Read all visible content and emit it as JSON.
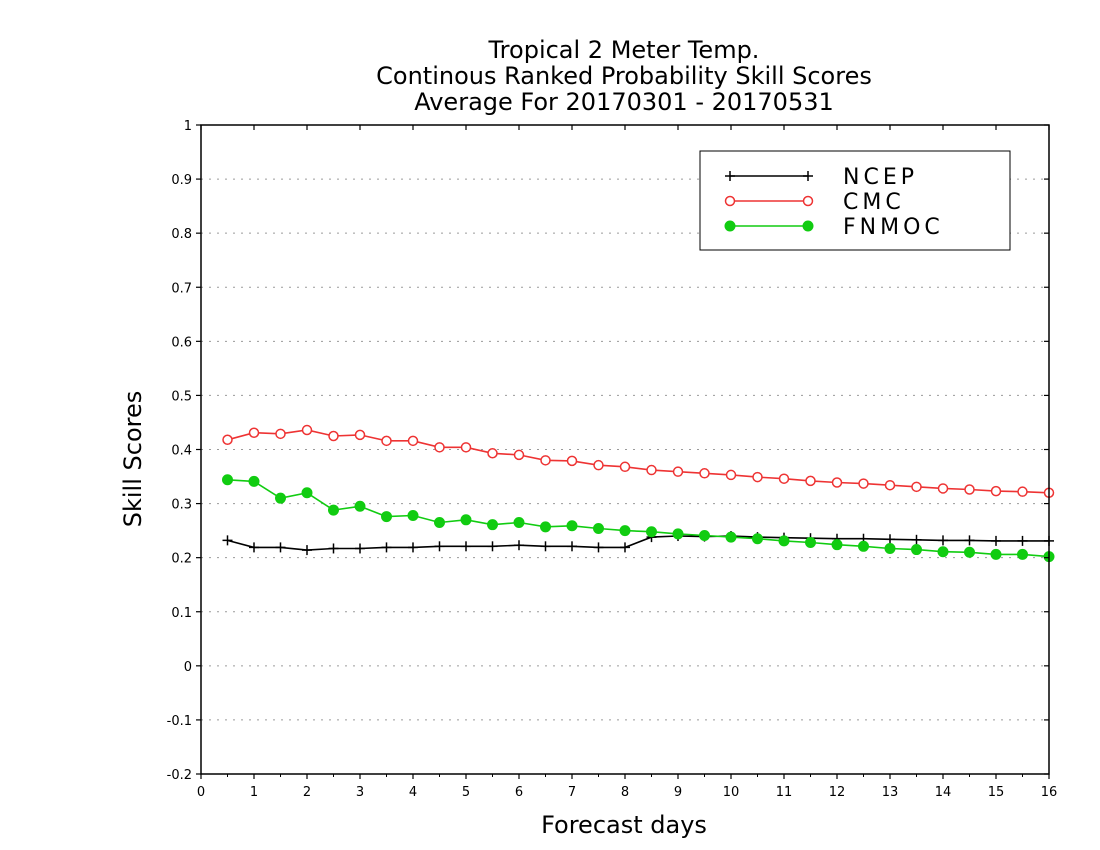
{
  "chart_data": {
    "type": "line",
    "title": [
      "Tropical 2 Meter Temp.",
      "Continous Ranked Probability Skill Scores",
      "Average For 20170301 - 20170531"
    ],
    "xlabel": "Forecast days",
    "ylabel": "Skill Scores",
    "xlim": [
      0,
      16
    ],
    "ylim": [
      -0.2,
      1
    ],
    "xticks": [
      "0",
      "1",
      "2",
      "3",
      "4",
      "5",
      "6",
      "7",
      "8",
      "9",
      "10",
      "11",
      "12",
      "13",
      "14",
      "15",
      "16"
    ],
    "yticks": [
      "-0.2",
      "-0.1",
      "0",
      "0.1",
      "0.2",
      "0.3",
      "0.4",
      "0.5",
      "0.6",
      "0.7",
      "0.8",
      "0.9",
      "1"
    ],
    "grid": "horizontal dotted",
    "legend_position": "top-right",
    "x": [
      0.5,
      1,
      1.5,
      2,
      2.5,
      3,
      3.5,
      4,
      4.5,
      5,
      5.5,
      6,
      6.5,
      7,
      7.5,
      8,
      8.5,
      9,
      9.5,
      10,
      10.5,
      11,
      11.5,
      12,
      12.5,
      13,
      13.5,
      14,
      14.5,
      15,
      15.5,
      16
    ],
    "series": [
      {
        "name": "NCEP",
        "color": "#000000",
        "marker": "plus",
        "values": [
          0.232,
          0.219,
          0.219,
          0.214,
          0.217,
          0.217,
          0.219,
          0.219,
          0.221,
          0.221,
          0.221,
          0.223,
          0.221,
          0.221,
          0.219,
          0.219,
          0.238,
          0.24,
          0.239,
          0.24,
          0.238,
          0.237,
          0.236,
          0.235,
          0.235,
          0.234,
          0.233,
          0.232,
          0.232,
          0.231,
          0.231,
          0.231
        ]
      },
      {
        "name": "CMC",
        "color": "#ee3333",
        "marker": "open-circle",
        "values": [
          0.418,
          0.431,
          0.429,
          0.436,
          0.425,
          0.427,
          0.416,
          0.416,
          0.404,
          0.404,
          0.393,
          0.39,
          0.38,
          0.379,
          0.371,
          0.368,
          0.362,
          0.359,
          0.356,
          0.353,
          0.349,
          0.346,
          0.342,
          0.339,
          0.337,
          0.334,
          0.331,
          0.328,
          0.326,
          0.323,
          0.322,
          0.32
        ]
      },
      {
        "name": "FNMOC",
        "color": "#11cc11",
        "marker": "filled-circle",
        "values": [
          0.344,
          0.341,
          0.31,
          0.32,
          0.288,
          0.295,
          0.276,
          0.278,
          0.265,
          0.27,
          0.261,
          0.265,
          0.257,
          0.259,
          0.254,
          0.25,
          0.248,
          0.244,
          0.241,
          0.238,
          0.235,
          0.231,
          0.228,
          0.224,
          0.221,
          0.217,
          0.215,
          0.211,
          0.21,
          0.206,
          0.206,
          0.202
        ]
      }
    ]
  }
}
